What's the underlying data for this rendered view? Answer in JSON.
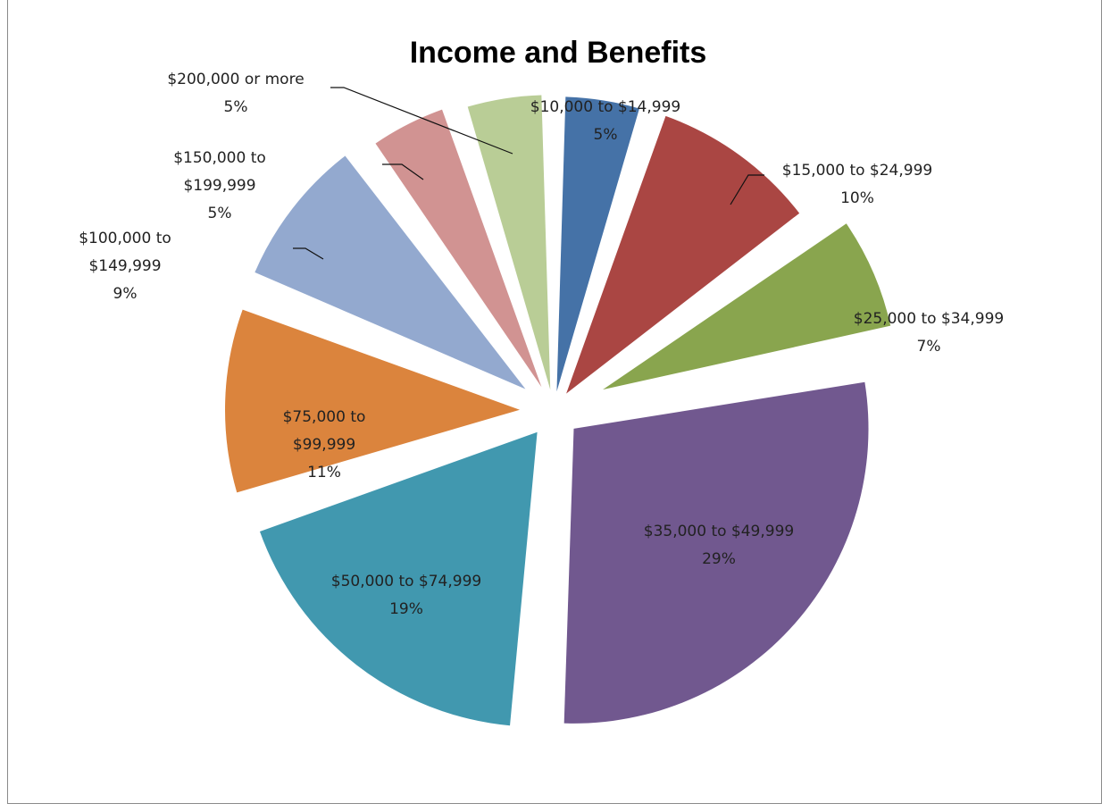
{
  "chart_data": {
    "type": "pie",
    "title": "Income and Benefits",
    "legend": "none",
    "slices": [
      {
        "label": "$10,000 to $14,999",
        "pct_label": "5%",
        "value": 5,
        "color": "#4572A7"
      },
      {
        "label": "$15,000 to $24,999",
        "pct_label": "10%",
        "value": 10,
        "color": "#AA4643"
      },
      {
        "label": "$25,000 to $34,999",
        "pct_label": "7%",
        "value": 7,
        "color": "#89A54E"
      },
      {
        "label": "$35,000 to $49,999",
        "pct_label": "29%",
        "value": 29,
        "color": "#71588F"
      },
      {
        "label": "$50,000 to $74,999",
        "pct_label": "19%",
        "value": 19,
        "color": "#4198AF"
      },
      {
        "label": "$75,000 to $99,999",
        "pct_label": "11%",
        "value": 11,
        "color": "#DB843D"
      },
      {
        "label": "$100,000 to $149,999",
        "pct_label": "9%",
        "value": 9,
        "color": "#93A9CF"
      },
      {
        "label": "$150,000 to $199,999",
        "pct_label": "5%",
        "value": 5,
        "color": "#D19392"
      },
      {
        "label": "$200,000 or more",
        "pct_label": "5%",
        "value": 5,
        "color": "#B9CD96"
      }
    ]
  }
}
